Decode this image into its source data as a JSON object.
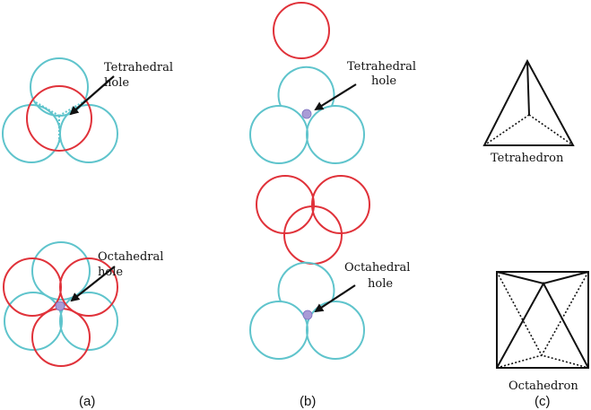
{
  "labels": {
    "tetra_hole": [
      "Tetrahedral",
      "hole"
    ],
    "octa_hole": [
      "Octahedral",
      "hole"
    ],
    "tetrahedron": "Tetrahedron",
    "octahedron": "Octahedron"
  },
  "captions": {
    "a": "(a)",
    "b": "(b)",
    "c": "(c)"
  },
  "colors": {
    "layer_a": "#5fc4cc",
    "layer_b": "#e0323a",
    "void": "#a99bd6"
  }
}
